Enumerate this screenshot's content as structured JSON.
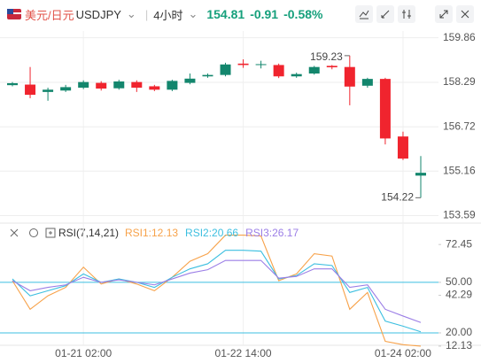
{
  "header": {
    "pair": "美元/日元",
    "symbol": "USDJPY",
    "period": "4小时",
    "price": 154.81,
    "change": -0.91,
    "change_pct": {
      "value": -0.58,
      "label": "-0.58%"
    }
  },
  "chart_data": [
    {
      "type": "candlestick",
      "up_color": "#13866d",
      "down_color": "#f0242e",
      "open": [
        158.19,
        158.21,
        157.95,
        158.0,
        158.1,
        158.27,
        158.08,
        158.3,
        158.15,
        158.03,
        158.27,
        158.5,
        158.55,
        158.95,
        158.9,
        158.9,
        158.5,
        158.6,
        158.87,
        158.83,
        158.17,
        158.41,
        156.38,
        155.0
      ],
      "high": [
        158.3,
        158.83,
        158.1,
        158.2,
        158.36,
        158.33,
        158.38,
        158.36,
        158.2,
        158.38,
        158.6,
        158.6,
        158.98,
        159.1,
        159.05,
        158.95,
        158.63,
        158.87,
        158.9,
        159.23,
        158.45,
        158.45,
        156.55,
        155.69
      ],
      "low": [
        158.15,
        157.73,
        157.64,
        157.95,
        158.05,
        158.0,
        158.03,
        157.95,
        157.98,
        157.98,
        158.22,
        158.45,
        158.5,
        158.8,
        158.78,
        158.44,
        158.45,
        158.56,
        158.75,
        157.48,
        158.1,
        156.1,
        155.55,
        154.22
      ],
      "close": [
        158.26,
        157.85,
        158.03,
        158.12,
        158.3,
        158.07,
        158.32,
        158.1,
        158.03,
        158.34,
        158.42,
        158.55,
        158.92,
        158.9,
        158.93,
        158.5,
        158.58,
        158.83,
        158.82,
        158.14,
        158.41,
        156.31,
        155.6,
        155.1
      ],
      "annotations": [
        159.23,
        154.22
      ],
      "ylim": [
        153.45,
        160.1
      ],
      "yticks": [
        159.86,
        158.29,
        156.72,
        155.16,
        153.59
      ],
      "grid": true
    },
    {
      "type": "line",
      "indicator": "RSI(7,14,21)",
      "categories": [
        null,
        null,
        null,
        null,
        "01-21 02:00",
        null,
        null,
        null,
        null,
        null,
        null,
        null,
        null,
        "01-22 14:00",
        null,
        null,
        null,
        null,
        null,
        null,
        null,
        null,
        "01-24 02:00",
        null
      ],
      "series": [
        {
          "name": "RSI1:12.13",
          "color": "#f7a24a",
          "values": [
            51,
            34,
            42,
            47,
            59,
            49,
            52,
            49,
            45,
            53,
            62.5,
            67,
            78,
            78,
            77.5,
            51,
            55,
            67,
            65.6,
            34,
            44,
            15,
            13,
            12.13
          ]
        },
        {
          "name": "RSI2:20.66",
          "color": "#3cbfe0",
          "values": [
            52,
            42,
            45,
            48,
            55,
            50,
            52,
            50,
            47,
            53,
            58,
            61,
            69,
            69,
            68.5,
            52,
            54,
            61,
            60,
            44,
            47,
            27,
            24,
            20.66
          ]
        },
        {
          "name": "RSI3:26.17",
          "color": "#9b7ee6",
          "values": [
            51,
            45,
            47,
            48.5,
            53,
            50,
            51.5,
            50,
            48.5,
            52,
            55.5,
            57.5,
            63,
            63,
            63,
            52.5,
            53.5,
            58,
            58,
            47,
            48.5,
            34,
            30,
            26.17
          ]
        }
      ],
      "hlines": [
        50,
        20
      ],
      "hline_color": "#3cbfe0",
      "ylim": [
        10,
        82
      ],
      "yticks": [
        72.45,
        {
          "value": 50,
          "label": "50.00"
        },
        42.29,
        {
          "value": 20,
          "label": "20.00"
        },
        12.13
      ]
    }
  ]
}
